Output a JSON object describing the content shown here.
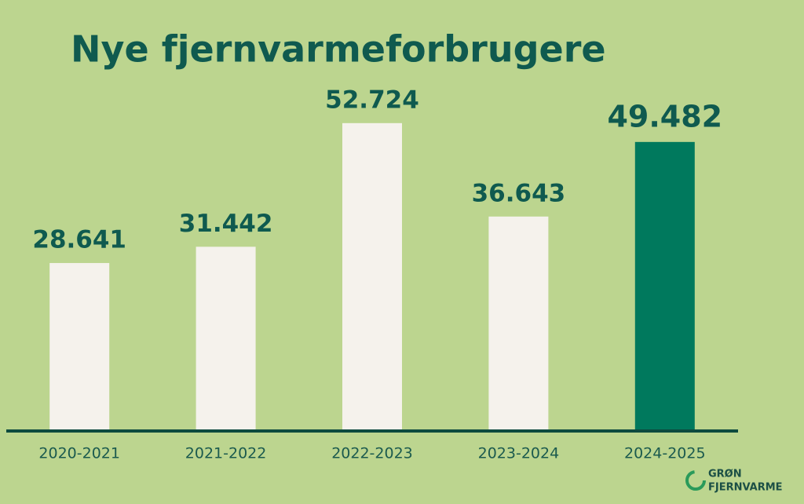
{
  "chart_data": {
    "type": "bar",
    "title": "Nye fjernvarmeforbrugere",
    "categories": [
      "2020-2021",
      "2021-2022",
      "2022-2023",
      "2023-2024",
      "2024-2025"
    ],
    "values": [
      28641,
      31442,
      52724,
      36643,
      49482
    ],
    "value_labels": [
      "28.641",
      "31.442",
      "52.724",
      "36.643",
      "49.482"
    ],
    "colors": [
      "#f5f2ec",
      "#f5f2ec",
      "#f5f2ec",
      "#f5f2ec",
      "#00795d"
    ],
    "logo": [
      "GRØN",
      "FJERNVARME"
    ]
  }
}
